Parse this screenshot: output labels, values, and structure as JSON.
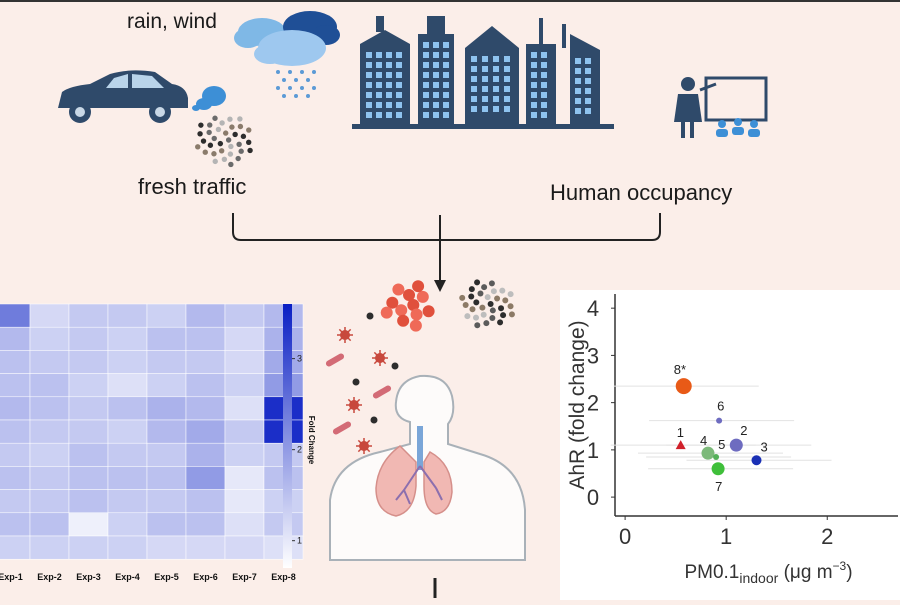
{
  "labels": {
    "weather": "rain, wind",
    "traffic": "fresh traffic",
    "occupancy": "Human occupancy"
  },
  "heatmap": {
    "columns": [
      "Exp-1",
      "Exp-2",
      "Exp-3",
      "Exp-4",
      "Exp-5",
      "Exp-6",
      "Exp-7",
      "Exp-8"
    ],
    "colorbar_title": "Fold Change",
    "colorbar_ticks": [
      "1",
      "2",
      "3"
    ],
    "colorbar_range": [
      0.7,
      3.6
    ],
    "high_color": "#0a1fc4",
    "low_color": "#ffffff",
    "cells": [
      [
        2.4,
        1.2,
        1.4,
        1.4,
        1.3,
        1.6,
        1.4,
        1.6
      ],
      [
        1.6,
        1.3,
        1.4,
        1.3,
        1.5,
        1.5,
        1.2,
        1.7
      ],
      [
        1.5,
        1.4,
        1.4,
        1.3,
        1.4,
        1.4,
        1.2,
        1.8
      ],
      [
        1.5,
        1.5,
        1.3,
        1.1,
        1.3,
        1.5,
        1.3,
        2.0
      ],
      [
        1.6,
        1.5,
        1.4,
        1.5,
        1.7,
        1.6,
        1.1,
        3.4
      ],
      [
        1.5,
        1.4,
        1.4,
        1.3,
        1.6,
        1.8,
        1.4,
        3.4
      ],
      [
        1.4,
        1.3,
        1.5,
        1.4,
        1.4,
        1.7,
        1.3,
        1.4
      ],
      [
        1.5,
        1.4,
        1.5,
        1.5,
        1.5,
        2.0,
        1.0,
        1.5
      ],
      [
        1.4,
        1.4,
        1.5,
        1.4,
        1.4,
        1.5,
        1.0,
        1.3
      ],
      [
        1.5,
        1.5,
        0.9,
        1.3,
        1.5,
        1.5,
        1.1,
        1.4
      ],
      [
        1.3,
        1.3,
        1.3,
        1.3,
        1.2,
        1.2,
        1.2,
        1.1
      ]
    ]
  },
  "chart_data": {
    "type": "scatter",
    "xlabel_main": "PM0.1",
    "xlabel_sub": "indoor",
    "xlabel_unit": "(μg m",
    "xlabel_sup": "−3",
    "xlabel_close": ")",
    "ylabel": "AhR (fold change)",
    "xlim": [
      -0.1,
      2.7
    ],
    "ylim": [
      -0.4,
      4.3
    ],
    "xticks": [
      "0",
      "1",
      "2"
    ],
    "yticks": [
      "0",
      "1",
      "2",
      "3",
      "4"
    ],
    "points": [
      {
        "label": "1",
        "x": 0.55,
        "y": 1.1,
        "color": "#d0202a",
        "marker": "triangle"
      },
      {
        "label": "2",
        "x": 1.1,
        "y": 1.1,
        "color": "#6e6cc0",
        "marker": "circle"
      },
      {
        "label": "3",
        "x": 1.3,
        "y": 0.78,
        "color": "#1a30b5",
        "marker": "circle"
      },
      {
        "label": "4",
        "x": 0.82,
        "y": 0.93,
        "color": "#7cb97a",
        "marker": "circle"
      },
      {
        "label": "5",
        "x": 0.9,
        "y": 0.85,
        "color": "#55b05a",
        "marker": "circle"
      },
      {
        "label": "6",
        "x": 0.93,
        "y": 1.62,
        "color": "#6e6cc0",
        "marker": "circle"
      },
      {
        "label": "7",
        "x": 0.92,
        "y": 0.6,
        "color": "#3fbf3a",
        "marker": "circle"
      },
      {
        "label": "8*",
        "x": 0.58,
        "y": 2.35,
        "color": "#e85a17",
        "marker": "circle"
      }
    ]
  }
}
